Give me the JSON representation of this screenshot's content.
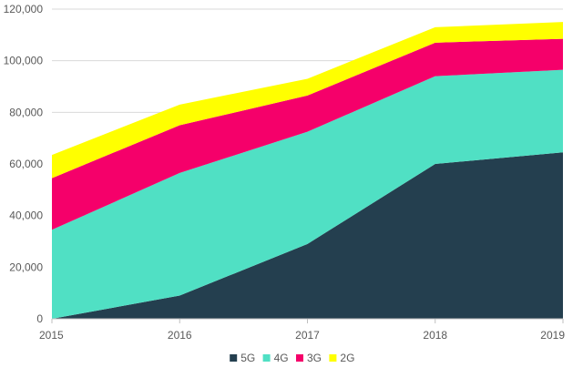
{
  "chart_data": {
    "type": "area",
    "stacked": true,
    "title": "",
    "xlabel": "",
    "ylabel": "",
    "x": [
      2015,
      2016,
      2017,
      2018,
      2019
    ],
    "ylim": [
      0,
      120000
    ],
    "y_ticks": [
      0,
      20000,
      40000,
      60000,
      80000,
      100000,
      120000
    ],
    "y_tick_labels": [
      "0",
      "20,000",
      "40,000",
      "60,000",
      "80,000",
      "100,000",
      "120,000"
    ],
    "x_tick_labels": [
      "2015",
      "2016",
      "2017",
      "2018",
      "2019"
    ],
    "grid": true,
    "legend_position": "bottom",
    "series": [
      {
        "name": "5G",
        "color": "#243f4f",
        "values": [
          0,
          9000,
          29000,
          60000,
          64500
        ]
      },
      {
        "name": "4G",
        "color": "#50e0c4",
        "values": [
          34500,
          47500,
          43500,
          34000,
          32000
        ]
      },
      {
        "name": "3G",
        "color": "#f5006a",
        "values": [
          20000,
          18500,
          14000,
          13000,
          12000
        ]
      },
      {
        "name": "2G",
        "color": "#ffff00",
        "values": [
          9000,
          8000,
          6500,
          6000,
          6500
        ]
      }
    ]
  }
}
